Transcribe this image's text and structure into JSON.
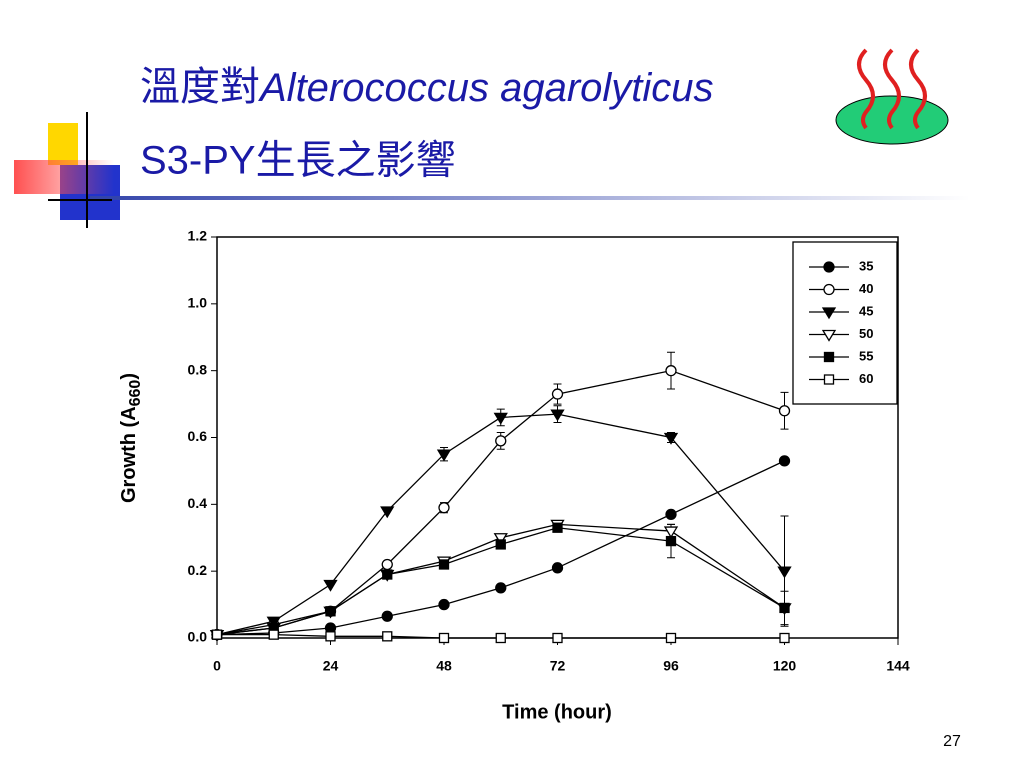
{
  "slide": {
    "title_line1": "溫度對",
    "title_italic": "Alterococcus agarolyticus",
    "title_line2": "S3-PY生長之影響",
    "page_number": "27"
  },
  "chart_data": {
    "type": "line",
    "xlabel": "Time (hour)",
    "ylabel": "Growth (A",
    "ylabel_sub": "660",
    "ylabel_end": ")",
    "x": [
      0,
      12,
      24,
      36,
      48,
      60,
      72,
      96,
      120
    ],
    "xlim": [
      0,
      144
    ],
    "xticks": [
      0,
      24,
      48,
      72,
      96,
      120,
      144
    ],
    "ylim": [
      0,
      1.2
    ],
    "yticks": [
      {
        "value": 0,
        "label": "0.0"
      },
      0.2,
      0.4,
      0.6,
      0.8,
      {
        "value": 1,
        "label": "1.0"
      },
      1.2
    ],
    "legend": "upper right",
    "series": [
      {
        "name": "35",
        "color": "#000000",
        "marker": "circle",
        "filled": true,
        "values": [
          0.01,
          0.015,
          0.03,
          0.065,
          0.1,
          0.15,
          0.21,
          0.37,
          0.53
        ],
        "errors": [
          null,
          null,
          null,
          null,
          null,
          null,
          null,
          null,
          0.01
        ]
      },
      {
        "name": "40",
        "color": "#000000",
        "marker": "circle",
        "filled": false,
        "values": [
          0.01,
          0.04,
          0.08,
          0.22,
          0.39,
          0.59,
          0.73,
          0.8,
          0.68
        ],
        "errors": [
          null,
          null,
          null,
          null,
          0.015,
          0.025,
          0.03,
          0.055,
          0.055
        ]
      },
      {
        "name": "45",
        "color": "#000000",
        "marker": "triangle",
        "filled": true,
        "values": [
          0.01,
          0.05,
          0.16,
          0.38,
          0.55,
          0.66,
          0.67,
          0.6,
          0.2
        ],
        "errors": [
          null,
          null,
          null,
          null,
          0.02,
          0.025,
          0.025,
          0.015,
          0.165
        ]
      },
      {
        "name": "50",
        "color": "#000000",
        "marker": "triangle",
        "filled": false,
        "values": [
          0.01,
          0.03,
          0.08,
          0.19,
          0.23,
          0.3,
          0.34,
          0.32,
          0.09
        ],
        "errors": [
          null,
          null,
          null,
          null,
          null,
          null,
          null,
          0.02,
          null
        ]
      },
      {
        "name": "55",
        "color": "#000000",
        "marker": "square",
        "filled": true,
        "values": [
          0.01,
          0.03,
          0.08,
          0.19,
          0.22,
          0.28,
          0.33,
          0.29,
          0.09
        ],
        "errors": [
          null,
          null,
          null,
          null,
          null,
          null,
          null,
          0.05,
          0.05
        ]
      },
      {
        "name": "60",
        "color": "#000000",
        "marker": "square",
        "filled": false,
        "values": [
          0.01,
          0.01,
          0.005,
          0.005,
          0,
          0,
          0,
          0,
          0
        ],
        "errors": [
          null,
          null,
          null,
          null,
          null,
          null,
          null,
          null,
          null
        ]
      }
    ]
  }
}
